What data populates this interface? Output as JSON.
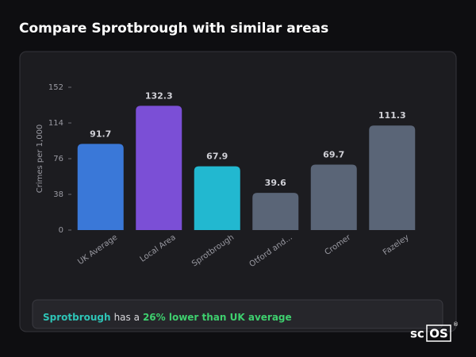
{
  "chart_data": {
    "type": "bar",
    "title": "Compare Sprotbrough with similar areas",
    "ylabel": "Crimes per 1,000",
    "categories": [
      "UK Average",
      "Local Area",
      "Sprotbrough",
      "Otford and...",
      "Cromer",
      "Fazeley"
    ],
    "values": [
      91.7,
      132.3,
      67.9,
      39.6,
      69.7,
      111.3
    ],
    "colors": [
      "#3a78d8",
      "#7b4fd6",
      "#22b8d0",
      "#5a6577",
      "#5a6577",
      "#5a6577"
    ],
    "ylim": [
      0,
      152
    ],
    "yticks": [
      0,
      38,
      76,
      114,
      152
    ],
    "grid": false
  },
  "summary": {
    "area": "Sprotbrough",
    "text": "has a",
    "highlight": "26% lower than UK average"
  },
  "logo": {
    "prefix": "sc",
    "suffix": "OS",
    "mark": "®"
  }
}
